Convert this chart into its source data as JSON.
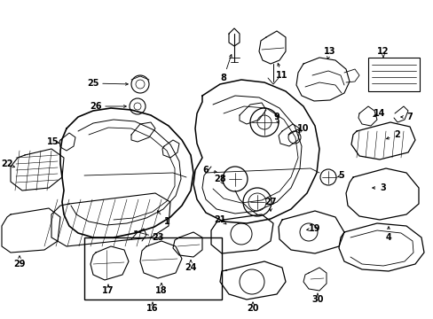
{
  "bg_color": "#ffffff",
  "fg_color": "#000000",
  "figsize": [
    4.89,
    3.6
  ],
  "dpi": 100
}
